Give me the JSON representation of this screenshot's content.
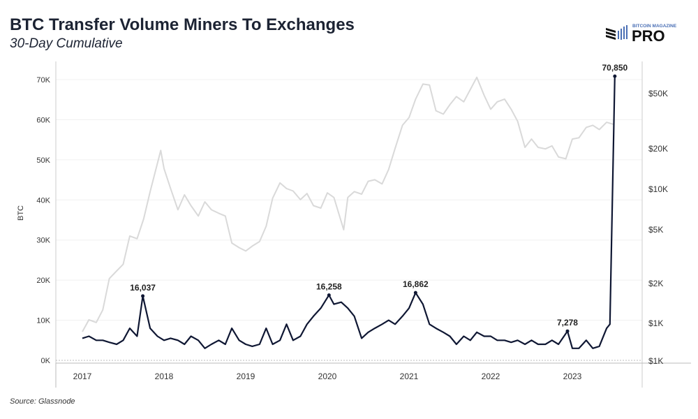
{
  "header": {
    "title": "BTC Transfer Volume Miners To Exchanges",
    "subtitle": "30-Day Cumulative"
  },
  "logo": {
    "top": "BITCOIN MAGAZINE",
    "main": "PRO",
    "accent": "#4a6fb5"
  },
  "footer": {
    "source": "Source: Glassnode"
  },
  "chart_data": {
    "type": "line",
    "ylabel": "BTC",
    "ylim": [
      0,
      70000
    ],
    "y_ticks": [
      "0K",
      "10K",
      "20K",
      "30K",
      "40K",
      "50K",
      "60K",
      "70K"
    ],
    "y2_scale": "log",
    "y2_ticks": [
      "$1K",
      "$1K",
      "$2K",
      "$5K",
      "$10K",
      "$20K",
      "$50K"
    ],
    "x_ticks": [
      "2017",
      "2018",
      "2019",
      "2020",
      "2021",
      "2022",
      "2023"
    ],
    "grid": true,
    "series": [
      {
        "role": "volume",
        "color": "#0f1733",
        "x": [
          2017.0,
          2017.08,
          2017.17,
          2017.25,
          2017.33,
          2017.42,
          2017.5,
          2017.58,
          2017.67,
          2017.74,
          2017.83,
          2017.92,
          2018.0,
          2018.08,
          2018.17,
          2018.25,
          2018.33,
          2018.42,
          2018.5,
          2018.58,
          2018.67,
          2018.75,
          2018.83,
          2018.92,
          2019.0,
          2019.08,
          2019.17,
          2019.25,
          2019.33,
          2019.42,
          2019.5,
          2019.58,
          2019.67,
          2019.75,
          2019.83,
          2019.92,
          2020.02,
          2020.08,
          2020.17,
          2020.25,
          2020.33,
          2020.42,
          2020.5,
          2020.58,
          2020.67,
          2020.75,
          2020.83,
          2020.92,
          2021.0,
          2021.08,
          2021.17,
          2021.25,
          2021.33,
          2021.42,
          2021.5,
          2021.58,
          2021.67,
          2021.75,
          2021.83,
          2021.92,
          2022.0,
          2022.08,
          2022.17,
          2022.25,
          2022.33,
          2022.42,
          2022.5,
          2022.58,
          2022.67,
          2022.75,
          2022.83,
          2022.94,
          2023.0,
          2023.08,
          2023.17,
          2023.25,
          2023.33,
          2023.42,
          2023.46,
          2023.52
        ],
        "values": [
          5500,
          6000,
          5000,
          5000,
          4500,
          4000,
          5000,
          8000,
          6000,
          16037,
          8000,
          6000,
          5000,
          5500,
          5000,
          4000,
          6000,
          5000,
          3000,
          4000,
          5000,
          4000,
          8000,
          5000,
          4000,
          3500,
          4000,
          8000,
          4000,
          5000,
          9000,
          5000,
          6000,
          9000,
          11000,
          13000,
          16258,
          14000,
          14500,
          13000,
          11000,
          5500,
          7000,
          8000,
          9000,
          10000,
          9000,
          11000,
          13000,
          16862,
          14000,
          9000,
          8000,
          7000,
          6000,
          4000,
          6000,
          5000,
          7000,
          6000,
          6000,
          5000,
          5000,
          4500,
          5000,
          4000,
          5000,
          4000,
          4000,
          5000,
          4000,
          7278,
          3000,
          3000,
          5000,
          3000,
          3500,
          8000,
          9000,
          70850
        ]
      },
      {
        "role": "price",
        "axis": "right",
        "color": "#d9d9d9",
        "x": [
          2017.0,
          2017.08,
          2017.17,
          2017.25,
          2017.33,
          2017.42,
          2017.5,
          2017.58,
          2017.67,
          2017.75,
          2017.83,
          2017.96,
          2018.0,
          2018.08,
          2018.17,
          2018.25,
          2018.33,
          2018.42,
          2018.5,
          2018.58,
          2018.67,
          2018.75,
          2018.83,
          2018.92,
          2019.0,
          2019.08,
          2019.17,
          2019.25,
          2019.33,
          2019.42,
          2019.5,
          2019.58,
          2019.67,
          2019.75,
          2019.83,
          2019.92,
          2020.0,
          2020.08,
          2020.2,
          2020.25,
          2020.33,
          2020.42,
          2020.5,
          2020.58,
          2020.67,
          2020.75,
          2020.83,
          2020.92,
          2021.0,
          2021.08,
          2021.17,
          2021.25,
          2021.33,
          2021.42,
          2021.5,
          2021.58,
          2021.67,
          2021.83,
          2021.92,
          2022.0,
          2022.08,
          2022.17,
          2022.25,
          2022.33,
          2022.42,
          2022.5,
          2022.58,
          2022.67,
          2022.75,
          2022.83,
          2022.92,
          2023.0,
          2023.08,
          2023.17,
          2023.25,
          2023.33,
          2023.42,
          2023.5
        ],
        "values": [
          900,
          1100,
          1050,
          1300,
          2200,
          2500,
          2800,
          4500,
          4300,
          6000,
          9500,
          19000,
          14000,
          10000,
          7000,
          9000,
          7500,
          6300,
          8000,
          7000,
          6600,
          6300,
          4000,
          3700,
          3500,
          3800,
          4100,
          5300,
          8500,
          11000,
          10000,
          9600,
          8300,
          9200,
          7500,
          7200,
          9300,
          8600,
          5000,
          8600,
          9500,
          9100,
          11300,
          11600,
          10800,
          13800,
          19700,
          29000,
          33000,
          45000,
          58000,
          57000,
          37000,
          35000,
          41000,
          47000,
          43000,
          65000,
          48000,
          38000,
          43000,
          45000,
          38000,
          31000,
          20000,
          23000,
          20000,
          19500,
          20500,
          17000,
          16500,
          23000,
          23500,
          28000,
          29000,
          27000,
          30500,
          29500
        ]
      }
    ],
    "annotations": [
      {
        "x": 2017.74,
        "y": 16037,
        "label": "16,037"
      },
      {
        "x": 2020.02,
        "y": 16258,
        "label": "16,258"
      },
      {
        "x": 2021.08,
        "y": 16862,
        "label": "16,862"
      },
      {
        "x": 2022.94,
        "y": 7278,
        "label": "7,278"
      },
      {
        "x": 2023.52,
        "y": 70850,
        "label": "70,850"
      }
    ]
  }
}
